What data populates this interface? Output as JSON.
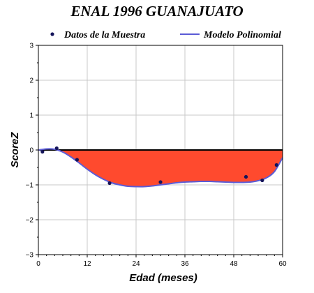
{
  "chart_data": {
    "type": "scatter",
    "title": "ENAL 1996 GUANAJUATO",
    "xlabel": "Edad (meses)",
    "ylabel": "ScoreZ",
    "xlim": [
      0,
      60
    ],
    "ylim": [
      -3,
      3
    ],
    "xticks": [
      0,
      12,
      24,
      36,
      48,
      60
    ],
    "yticks": [
      -3,
      -2,
      -1,
      0,
      1,
      2,
      3
    ],
    "grid": true,
    "legend_position": "top",
    "colors": {
      "points": "#14145a",
      "curve": "#5b5bd6",
      "fill": "#ff4a2e",
      "zero_line": "#000000",
      "grid": "#c8c8c8"
    },
    "series": [
      {
        "name": "Datos de la Muestra",
        "kind": "points",
        "x": [
          1,
          4.5,
          9.5,
          17.5,
          30,
          51,
          55,
          58.5
        ],
        "y": [
          -0.05,
          0.05,
          -0.28,
          -0.95,
          -0.92,
          -0.77,
          -0.87,
          -0.43
        ]
      },
      {
        "name": "Modelo Polinomial",
        "kind": "curve",
        "x": [
          0,
          2,
          4,
          6,
          8,
          10,
          12,
          14,
          16,
          18,
          20,
          22,
          24,
          26,
          28,
          30,
          32,
          34,
          36,
          38,
          40,
          42,
          44,
          46,
          48,
          50,
          52,
          54,
          56,
          58,
          60
        ],
        "y": [
          0.0,
          0.03,
          0.02,
          -0.06,
          -0.2,
          -0.37,
          -0.55,
          -0.71,
          -0.84,
          -0.94,
          -1.0,
          -1.04,
          -1.05,
          -1.05,
          -1.03,
          -1.0,
          -0.97,
          -0.94,
          -0.92,
          -0.91,
          -0.9,
          -0.9,
          -0.91,
          -0.92,
          -0.93,
          -0.93,
          -0.92,
          -0.88,
          -0.8,
          -0.62,
          -0.22
        ]
      }
    ]
  }
}
